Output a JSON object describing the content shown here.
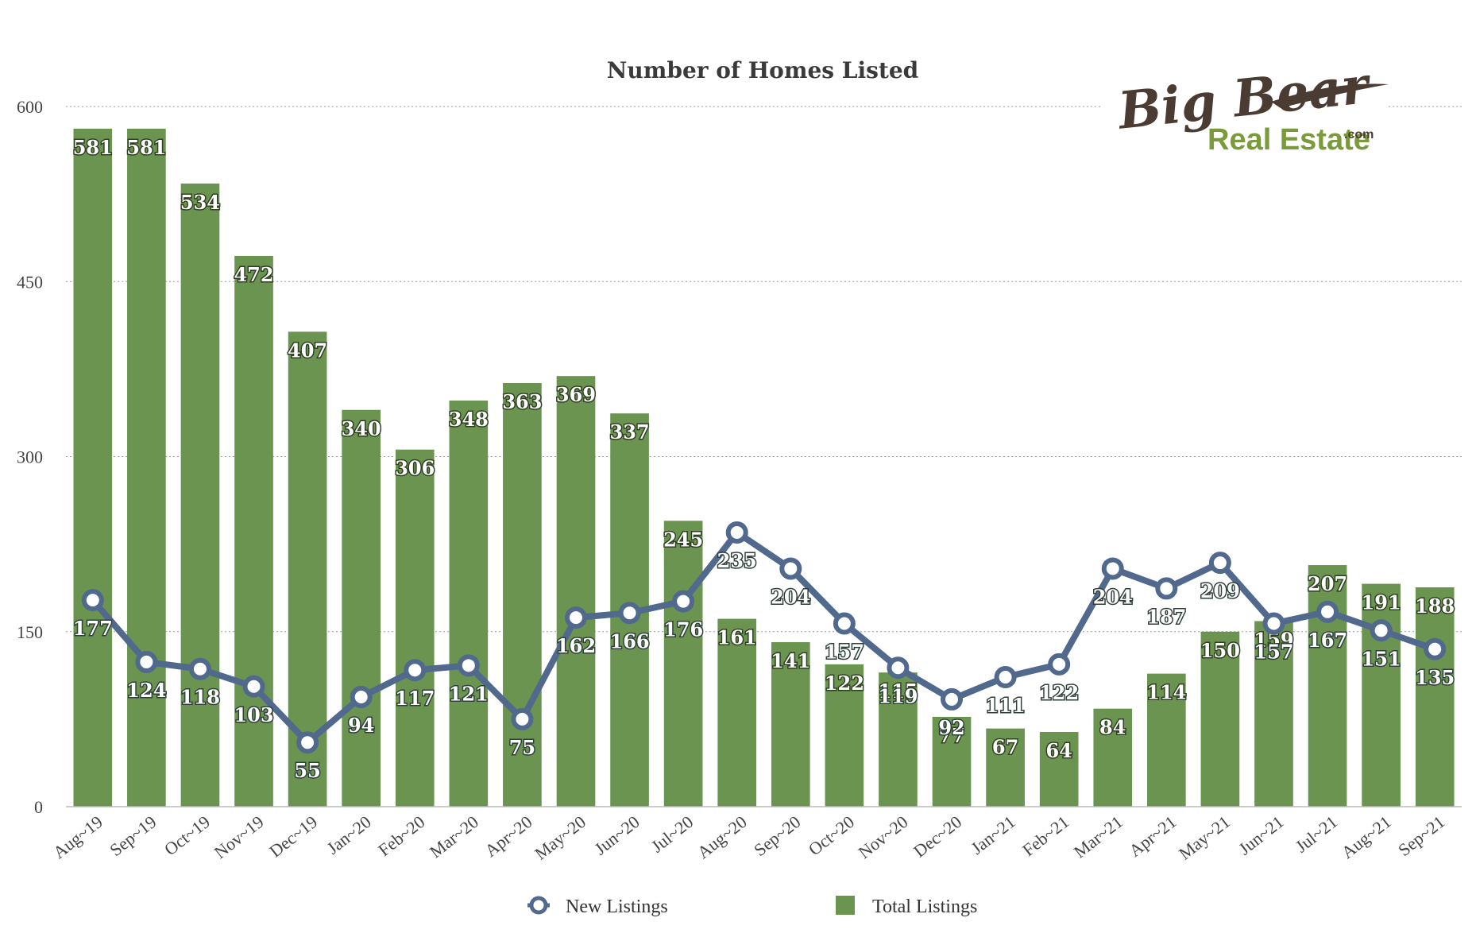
{
  "chart_data": {
    "type": "bar",
    "title": "Number of Homes Listed",
    "xlabel": "",
    "ylabel": "",
    "ylim": [
      0,
      600
    ],
    "yticks": [
      "0",
      "150",
      "300",
      "450",
      "600"
    ],
    "grid": true,
    "legend_position": "bottom",
    "categories": [
      "Aug~19",
      "Sep~19",
      "Oct~19",
      "Nov~19",
      "Dec~19",
      "Jan~20",
      "Feb~20",
      "Mar~20",
      "Apr~20",
      "May~20",
      "Jun~20",
      "Jul~20",
      "Aug~20",
      "Sep~20",
      "Oct~20",
      "Nov~20",
      "Dec~20",
      "Jan~21",
      "Feb~21",
      "Mar~21",
      "Apr~21",
      "May~21",
      "Jun~21",
      "Jul~21",
      "Aug~21",
      "Sep~21"
    ],
    "series": [
      {
        "name": "New Listings",
        "type": "line",
        "color": "#52698e",
        "values": [
          177,
          124,
          118,
          103,
          55,
          94,
          117,
          121,
          75,
          162,
          166,
          176,
          235,
          204,
          157,
          119,
          92,
          111,
          122,
          204,
          187,
          209,
          157,
          167,
          151,
          135
        ]
      },
      {
        "name": "Total Listings",
        "type": "bar",
        "color": "#6a9450",
        "values": [
          581,
          581,
          534,
          472,
          407,
          340,
          306,
          348,
          363,
          369,
          337,
          245,
          161,
          141,
          122,
          115,
          77,
          67,
          64,
          84,
          114,
          150,
          159,
          207,
          191,
          188
        ]
      }
    ]
  },
  "logo": {
    "main": "Big Bear",
    "sub": "Real Estate",
    "suffix": ".com"
  }
}
